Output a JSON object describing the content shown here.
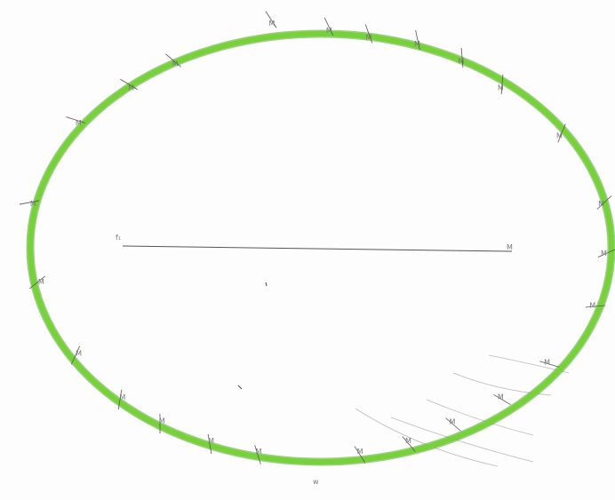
{
  "diagram": {
    "title": "",
    "ellipse_color": "#76d13a",
    "ellipse_edge_color": "#4faa1e",
    "stroke_color": "#555555",
    "axis": {
      "start_label": "f₁",
      "end_label": "M"
    },
    "markers": [
      {
        "label": "M"
      },
      {
        "label": "M"
      },
      {
        "label": "M"
      },
      {
        "label": "M"
      },
      {
        "label": "M"
      },
      {
        "label": "M"
      },
      {
        "label": "M"
      },
      {
        "label": "M"
      },
      {
        "label": "M"
      },
      {
        "label": "M"
      },
      {
        "label": "M"
      },
      {
        "label": "M"
      },
      {
        "label": "M"
      },
      {
        "label": "M"
      },
      {
        "label": "M"
      },
      {
        "label": "M"
      },
      {
        "label": "M"
      },
      {
        "label": "M"
      },
      {
        "label": "M"
      },
      {
        "label": "M"
      },
      {
        "label": "M"
      },
      {
        "label": "M"
      },
      {
        "label": "M"
      },
      {
        "label": "M"
      },
      {
        "label": "M"
      }
    ],
    "bottom_label": "w"
  }
}
